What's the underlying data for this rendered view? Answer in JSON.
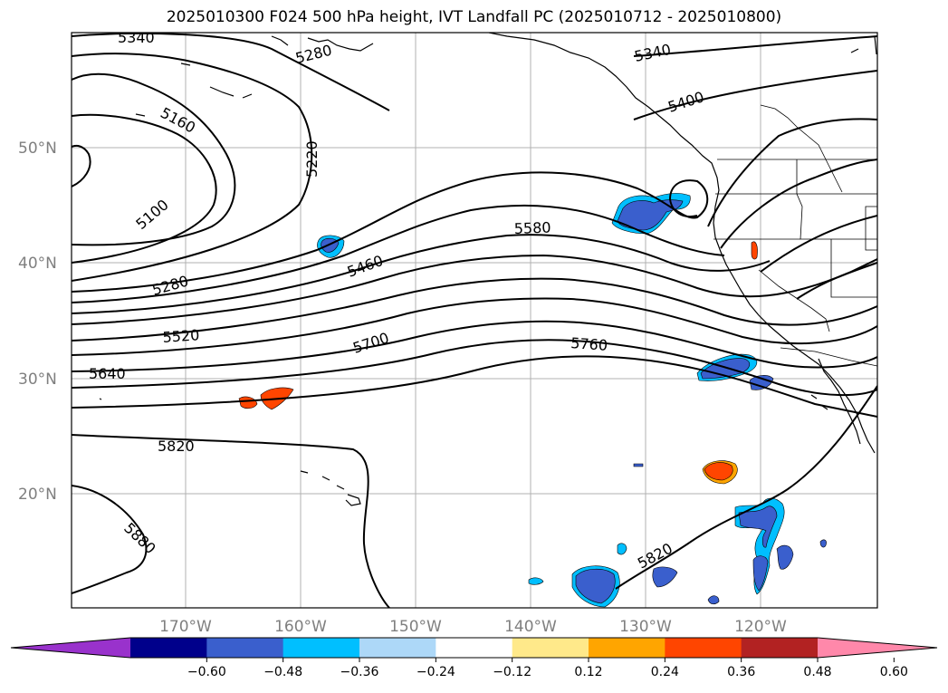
{
  "title": "2025010300 F024 500 hPa height, IVT Landfall PC (2025010712 - 2025010800)",
  "latitude_labels": [
    "50°N",
    "40°N",
    "30°N",
    "20°N"
  ],
  "longitude_labels": [
    "170°W",
    "160°W",
    "150°W",
    "140°W",
    "130°W",
    "120°W"
  ],
  "contour_labels": [
    "5340",
    "5280",
    "5160",
    "5220",
    "5100",
    "5280",
    "5520",
    "5640",
    "5460",
    "5700",
    "5580",
    "5760",
    "5820",
    "5880",
    "5340",
    "5400",
    "5820"
  ],
  "colorbar": {
    "ticks": [
      "−0.60",
      "−0.48",
      "−0.36",
      "−0.24",
      "−0.12",
      "0.12",
      "0.24",
      "0.36",
      "0.48",
      "0.60"
    ],
    "colors": [
      "#9932cc",
      "#00008b",
      "#3a5fcd",
      "#00bfff",
      "#add8f8",
      "#ffffff",
      "#ffe98a",
      "#ffa500",
      "#ff4500",
      "#b22222",
      "#ff88aa"
    ]
  }
}
